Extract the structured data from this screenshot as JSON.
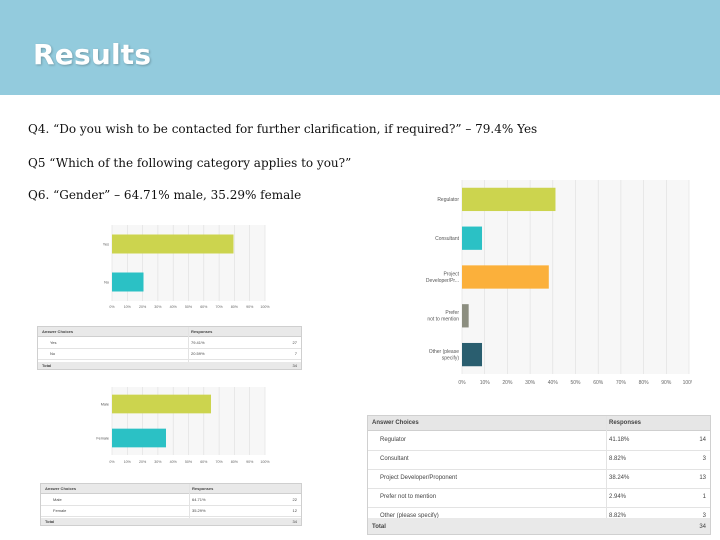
{
  "slide": {
    "title": "Results",
    "q4": "Q4. “Do you wish to be contacted for further clarification, if required?” – 79.4% Yes",
    "q5": "Q5 “Which of the following category applies to you?”",
    "q6": "Q6. “Gender” – 64.71% male, 35.29% female"
  },
  "chart_data": [
    {
      "type": "bar",
      "orientation": "horizontal",
      "categories": [
        "Yes",
        "No"
      ],
      "values": [
        79.41,
        20.59
      ],
      "x_ticks": [
        "0%",
        "10%",
        "20%",
        "30%",
        "40%",
        "50%",
        "60%",
        "70%",
        "80%",
        "90%",
        "100%"
      ],
      "xlim": [
        0,
        100
      ],
      "colors": [
        "#ccd44e",
        "#2bc1c5"
      ],
      "grid": true,
      "table": {
        "headers": [
          "Answer Choices",
          "Responses"
        ],
        "rows": [
          {
            "label": "Yes",
            "pct": "79.41%",
            "count": "27"
          },
          {
            "label": "No",
            "pct": "20.59%",
            "count": "7"
          }
        ],
        "total_label": "Total",
        "total": "34"
      }
    },
    {
      "type": "bar",
      "orientation": "horizontal",
      "categories": [
        "Regulator",
        "Consultant",
        "Project Developer/Pr...",
        "Prefer not to mention",
        "Other (please specify)"
      ],
      "values": [
        41.18,
        8.82,
        38.24,
        2.94,
        8.82
      ],
      "x_ticks": [
        "0%",
        "10%",
        "20%",
        "30%",
        "40%",
        "50%",
        "60%",
        "70%",
        "80%",
        "90%",
        "100%"
      ],
      "xlim": [
        0,
        100
      ],
      "colors": [
        "#ccd44e",
        "#2bc1c5",
        "#fbb03b",
        "#8c8e80",
        "#2a5e6f"
      ],
      "grid": true,
      "table": {
        "headers": [
          "Answer Choices",
          "Responses"
        ],
        "rows": [
          {
            "label": "Regulator",
            "pct": "41.18%",
            "count": "14"
          },
          {
            "label": "Consultant",
            "pct": "8.82%",
            "count": "3"
          },
          {
            "label": "Project Developer/Proponent",
            "pct": "38.24%",
            "count": "13"
          },
          {
            "label": "Prefer not to mention",
            "pct": "2.94%",
            "count": "1"
          },
          {
            "label": "Other (please specify)",
            "pct": "8.82%",
            "count": "3"
          }
        ],
        "total_label": "Total",
        "total": "34"
      }
    },
    {
      "type": "bar",
      "orientation": "horizontal",
      "categories": [
        "Male",
        "Female"
      ],
      "values": [
        64.71,
        35.29
      ],
      "x_ticks": [
        "0%",
        "10%",
        "20%",
        "30%",
        "40%",
        "50%",
        "60%",
        "70%",
        "80%",
        "90%",
        "100%"
      ],
      "xlim": [
        0,
        100
      ],
      "colors": [
        "#ccd44e",
        "#2bc1c5"
      ],
      "grid": true,
      "table": {
        "headers": [
          "Answer Choices",
          "Responses"
        ],
        "rows": [
          {
            "label": "Male",
            "pct": "64.71%",
            "count": "22"
          },
          {
            "label": "Female",
            "pct": "35.29%",
            "count": "12"
          }
        ],
        "total_label": "Total",
        "total": "34"
      }
    }
  ]
}
